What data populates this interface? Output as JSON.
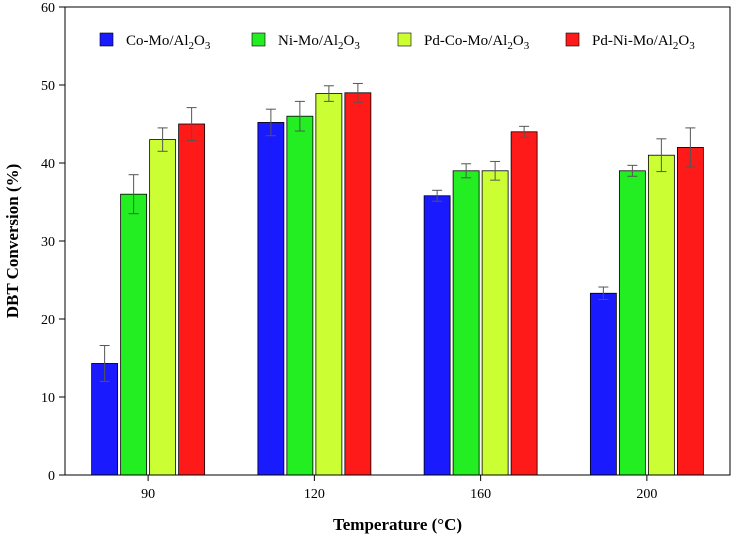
{
  "chart_data": {
    "type": "bar",
    "title": "",
    "xlabel": "Temperature (°C)",
    "ylabel": "DBT Conversion (%)",
    "ylim": [
      0,
      60
    ],
    "yticks": [
      0,
      10,
      20,
      30,
      40,
      50,
      60
    ],
    "categories": [
      "90",
      "120",
      "160",
      "200"
    ],
    "grid": false,
    "legend_position": "top",
    "series": [
      {
        "name_main": "Co-Mo/Al",
        "name_sub1": "2",
        "name_mid": "O",
        "name_sub2": "3",
        "color": "#1a1aff",
        "values": [
          14.3,
          45.2,
          35.8,
          23.3
        ],
        "errors": [
          2.3,
          1.7,
          0.7,
          0.8
        ]
      },
      {
        "name_main": "Ni-Mo/Al",
        "name_sub1": "2",
        "name_mid": "O",
        "name_sub2": "3",
        "color": "#22ee22",
        "values": [
          36.0,
          46.0,
          39.0,
          39.0
        ],
        "errors": [
          2.5,
          1.9,
          0.9,
          0.7
        ]
      },
      {
        "name_main": "Pd-Co-Mo/Al",
        "name_sub1": "2",
        "name_mid": "O",
        "name_sub2": "3",
        "color": "#ccff33",
        "values": [
          43.0,
          48.9,
          39.0,
          41.0
        ],
        "errors": [
          1.5,
          1.0,
          1.2,
          2.1
        ]
      },
      {
        "name_main": "Pd-Ni-Mo/Al",
        "name_sub1": "2",
        "name_mid": "O",
        "name_sub2": "3",
        "color": "#ff1a1a",
        "values": [
          45.0,
          49.0,
          44.0,
          42.0
        ],
        "errors": [
          2.1,
          1.2,
          0.7,
          2.5
        ]
      }
    ]
  }
}
